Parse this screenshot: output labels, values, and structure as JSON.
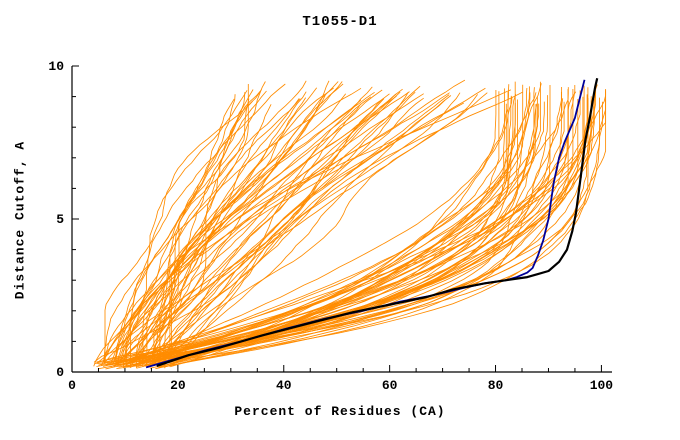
{
  "chart_data": {
    "type": "line",
    "title": "T1055-D1",
    "xlabel": "Percent of Residues (CA)",
    "ylabel": "Distance Cutoff, A",
    "xlim": [
      0,
      102
    ],
    "ylim": [
      0,
      10
    ],
    "x_major_ticks": [
      0,
      20,
      40,
      60,
      80,
      100
    ],
    "x_minor_step": 5,
    "y_major_ticks": [
      0,
      5,
      10
    ],
    "y_minor_step": 1,
    "grid": false,
    "legend": "none",
    "colors": {
      "ensemble": "#ff8c00",
      "highlight_black": "#000000",
      "highlight_navy": "#000099",
      "axis": "#000000",
      "background": "#ffffff"
    },
    "ensemble": {
      "count": 115,
      "seed": 11
    },
    "series": [
      {
        "name": "model-navy",
        "color": "#000099",
        "width": 1.8,
        "points": [
          [
            14,
            0.15
          ],
          [
            20,
            0.45
          ],
          [
            25,
            0.7
          ],
          [
            32,
            1.0
          ],
          [
            40,
            1.4
          ],
          [
            48,
            1.75
          ],
          [
            55,
            2.0
          ],
          [
            62,
            2.3
          ],
          [
            68,
            2.5
          ],
          [
            74,
            2.75
          ],
          [
            78,
            2.9
          ],
          [
            82,
            3.0
          ],
          [
            84,
            3.1
          ],
          [
            86,
            3.25
          ],
          [
            87,
            3.4
          ],
          [
            88,
            3.8
          ],
          [
            89,
            4.3
          ],
          [
            90,
            5.0
          ],
          [
            90.5,
            5.6
          ],
          [
            91,
            6.2
          ],
          [
            92,
            7.0
          ],
          [
            93,
            7.5
          ],
          [
            94,
            7.9
          ],
          [
            95,
            8.3
          ],
          [
            96,
            9.0
          ],
          [
            96.8,
            9.55
          ]
        ]
      },
      {
        "name": "model-black",
        "color": "#000000",
        "width": 2.2,
        "points": [
          [
            16,
            0.2
          ],
          [
            22,
            0.55
          ],
          [
            28,
            0.8
          ],
          [
            36,
            1.2
          ],
          [
            45,
            1.6
          ],
          [
            53,
            1.95
          ],
          [
            60,
            2.2
          ],
          [
            67,
            2.45
          ],
          [
            72,
            2.7
          ],
          [
            78,
            2.9
          ],
          [
            82,
            3.0
          ],
          [
            86,
            3.1
          ],
          [
            88,
            3.2
          ],
          [
            90,
            3.3
          ],
          [
            92,
            3.6
          ],
          [
            93.5,
            4.0
          ],
          [
            94.5,
            4.6
          ],
          [
            95.2,
            5.2
          ],
          [
            95.8,
            6.0
          ],
          [
            96.4,
            6.8
          ],
          [
            97,
            7.6
          ],
          [
            97.8,
            8.3
          ],
          [
            98.4,
            8.9
          ],
          [
            98.8,
            9.3
          ],
          [
            99.2,
            9.6
          ]
        ]
      }
    ]
  }
}
